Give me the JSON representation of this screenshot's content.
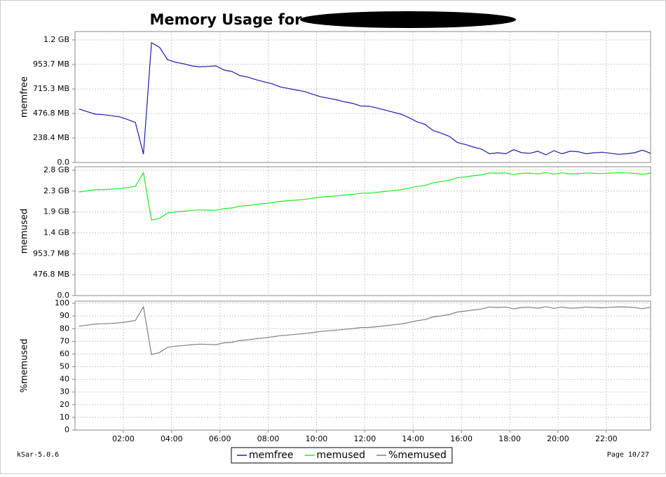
{
  "title": "Memory Usage for",
  "footer_left": "kSar-5.0.6",
  "footer_right": "Page 10/27",
  "legend_position": "bottom",
  "grid": true,
  "x": [
    "00:10",
    "00:30",
    "00:50",
    "01:10",
    "01:30",
    "01:50",
    "02:10",
    "02:30",
    "02:50",
    "03:10",
    "03:30",
    "03:50",
    "04:10",
    "04:30",
    "04:50",
    "05:10",
    "05:30",
    "05:50",
    "06:10",
    "06:30",
    "06:50",
    "07:10",
    "07:30",
    "07:50",
    "08:10",
    "08:30",
    "08:50",
    "09:10",
    "09:30",
    "09:50",
    "10:10",
    "10:30",
    "10:50",
    "11:10",
    "11:30",
    "11:50",
    "12:10",
    "12:30",
    "12:50",
    "13:10",
    "13:30",
    "13:50",
    "14:10",
    "14:30",
    "14:50",
    "15:10",
    "15:30",
    "15:50",
    "16:10",
    "16:30",
    "16:50",
    "17:10",
    "17:30",
    "17:50",
    "18:10",
    "18:30",
    "18:50",
    "19:10",
    "19:30",
    "19:50",
    "20:10",
    "20:30",
    "20:50",
    "21:10",
    "21:30",
    "21:50",
    "22:10",
    "22:30",
    "22:50",
    "23:10",
    "23:30",
    "23:50"
  ],
  "xlim": [
    "00:00",
    "23:50"
  ],
  "xticks": [
    "02:00",
    "04:00",
    "06:00",
    "08:00",
    "10:00",
    "12:00",
    "14:00",
    "16:00",
    "18:00",
    "20:00",
    "22:00"
  ],
  "chart_data": [
    {
      "type": "line",
      "ylabel": "memfree",
      "ylim": [
        0,
        1274
      ],
      "yticks": [
        {
          "value": 0,
          "label": "0.0"
        },
        {
          "value": 238.4,
          "label": "238.4 MB"
        },
        {
          "value": 476.8,
          "label": "476.8 MB"
        },
        {
          "value": 715.3,
          "label": "715.3 MB"
        },
        {
          "value": 953.7,
          "label": "953.7 MB"
        },
        {
          "value": 1192.1,
          "label": "1.2 GB"
        }
      ],
      "series": [
        {
          "name": "memfree",
          "color": "#1c1ca8",
          "values": [
            520,
            495,
            470,
            465,
            455,
            445,
            420,
            390,
            82,
            1165,
            1120,
            1000,
            975,
            960,
            940,
            930,
            935,
            940,
            900,
            885,
            845,
            830,
            805,
            785,
            765,
            735,
            720,
            705,
            690,
            665,
            640,
            625,
            610,
            590,
            575,
            550,
            548,
            530,
            510,
            490,
            470,
            435,
            395,
            370,
            310,
            285,
            255,
            195,
            175,
            150,
            130,
            85,
            95,
            85,
            125,
            95,
            90,
            110,
            75,
            115,
            85,
            110,
            105,
            85,
            95,
            100,
            90,
            80,
            85,
            95,
            120,
            90
          ]
        }
      ]
    },
    {
      "type": "line",
      "ylabel": "memused",
      "ylim": [
        0,
        2941
      ],
      "yticks": [
        {
          "value": 0,
          "label": "0.0"
        },
        {
          "value": 476.8,
          "label": "476.8 MB"
        },
        {
          "value": 953.7,
          "label": "953.7 MB"
        },
        {
          "value": 1430.5,
          "label": "1.4 GB"
        },
        {
          "value": 1907.3,
          "label": "1.9 GB"
        },
        {
          "value": 2384.2,
          "label": "2.3 GB"
        },
        {
          "value": 2861.0,
          "label": "2.8 GB"
        }
      ],
      "series": [
        {
          "name": "memused",
          "color": "#22e822",
          "values": [
            2365,
            2390,
            2415,
            2420,
            2430,
            2440,
            2465,
            2495,
            2803,
            1720,
            1765,
            1885,
            1910,
            1925,
            1945,
            1955,
            1950,
            1945,
            1985,
            2000,
            2040,
            2055,
            2080,
            2100,
            2120,
            2150,
            2165,
            2180,
            2195,
            2220,
            2245,
            2260,
            2275,
            2295,
            2310,
            2335,
            2337,
            2355,
            2375,
            2395,
            2415,
            2450,
            2490,
            2515,
            2575,
            2600,
            2630,
            2690,
            2710,
            2735,
            2755,
            2800,
            2790,
            2800,
            2760,
            2790,
            2795,
            2775,
            2810,
            2770,
            2800,
            2775,
            2780,
            2800,
            2790,
            2785,
            2795,
            2805,
            2800,
            2790,
            2765,
            2795
          ]
        }
      ]
    },
    {
      "type": "line",
      "ylabel": "%memused",
      "ylim": [
        0,
        101.7
      ],
      "yticks": [
        0,
        10,
        20,
        30,
        40,
        50,
        60,
        70,
        80,
        90,
        100
      ],
      "series": [
        {
          "name": "%memused",
          "color": "#808080",
          "values": [
            82.0,
            82.8,
            83.7,
            83.9,
            84.2,
            84.6,
            85.4,
            86.5,
            97.2,
            59.6,
            61.2,
            65.3,
            66.2,
            66.7,
            67.4,
            67.8,
            67.6,
            67.4,
            68.8,
            69.3,
            70.7,
            71.2,
            72.1,
            72.8,
            73.5,
            74.5,
            75.0,
            75.6,
            76.1,
            76.9,
            77.8,
            78.3,
            78.9,
            79.5,
            80.1,
            80.9,
            81.0,
            81.6,
            82.3,
            83.0,
            83.7,
            84.9,
            86.3,
            87.2,
            89.3,
            90.1,
            91.2,
            93.2,
            93.9,
            94.8,
            95.5,
            97.1,
            96.7,
            97.1,
            95.7,
            96.7,
            96.9,
            96.2,
            97.4,
            96.0,
            97.1,
            96.2,
            96.4,
            97.1,
            96.7,
            96.5,
            96.9,
            97.2,
            97.1,
            96.7,
            95.8,
            96.9
          ]
        }
      ]
    }
  ]
}
